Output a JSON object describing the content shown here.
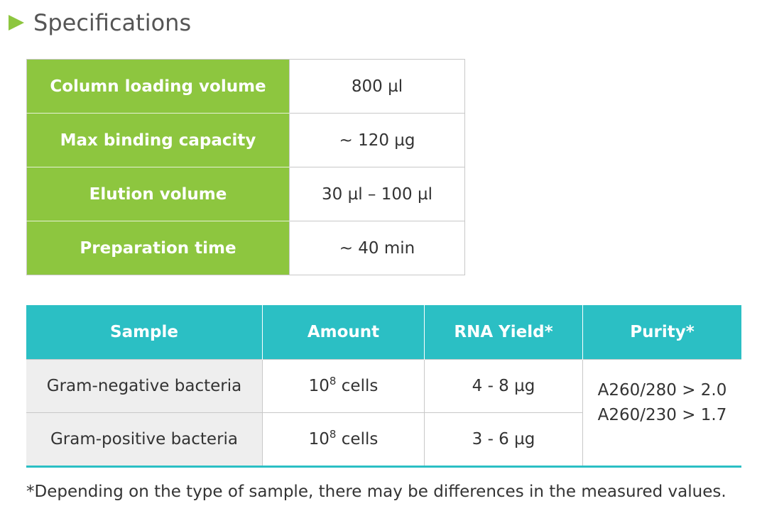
{
  "heading": {
    "title": "Specifications"
  },
  "spec_table": {
    "rows": [
      {
        "key": "Column loading volume",
        "value": "800 µl"
      },
      {
        "key": "Max binding capacity",
        "value": "~ 120 µg"
      },
      {
        "key": "Elution volume",
        "value": "30 µl – 100 µl"
      },
      {
        "key": "Preparation time",
        "value": "~ 40 min"
      }
    ]
  },
  "yield_table": {
    "headers": [
      "Sample",
      "Amount",
      "RNA Yield*",
      "Purity*"
    ],
    "rows": [
      {
        "sample": "Gram-negative bacteria",
        "amount_base": "10",
        "amount_exp": "8",
        "amount_unit": " cells",
        "yield": "4 - 8 µg"
      },
      {
        "sample": "Gram-positive bacteria",
        "amount_base": "10",
        "amount_exp": "8",
        "amount_unit": " cells",
        "yield": "3 - 6 µg"
      }
    ],
    "purity": [
      "A260/280 > 2.0",
      "A260/230 > 1.7"
    ]
  },
  "footnote": "*Depending on the type of sample, there may be differences in the measured values.",
  "colors": {
    "green": "#8dc63f",
    "teal": "#2bbfc4",
    "sample_bg": "#eeeeee"
  }
}
